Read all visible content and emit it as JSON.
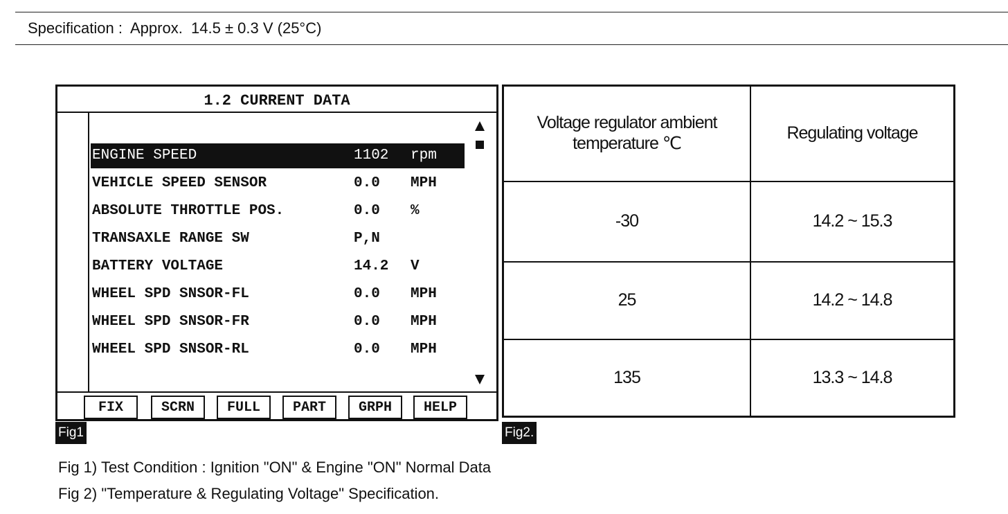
{
  "specification": {
    "label": "Specification :",
    "value": "Approx.  14.5 ± 0.3 V (25°C)"
  },
  "fig1": {
    "title": "1.2 CURRENT DATA",
    "rows": [
      [
        "ENGINE SPEED",
        "1102",
        "rpm"
      ],
      [
        "VEHICLE SPEED SENSOR",
        "0.0",
        "MPH"
      ],
      [
        "ABSOLUTE THROTTLE POS.",
        "0.0",
        "%"
      ],
      [
        "TRANSAXLE RANGE SW",
        "P,N",
        null
      ],
      [
        "BATTERY VOLTAGE",
        "14.2",
        "V"
      ],
      [
        "WHEEL SPD SNSOR-FL",
        "0.0",
        "MPH"
      ],
      [
        "WHEEL SPD SNSOR-FR",
        "0.0",
        "MPH"
      ],
      [
        "WHEEL SPD SNSOR-RL",
        "0.0",
        "MPH"
      ]
    ],
    "buttons": [
      "FIX",
      "SCRN",
      "FULL",
      "PART",
      "GRPH",
      "HELP"
    ],
    "caption": "Fig1"
  },
  "fig2": {
    "headers": [
      "Voltage regulator ambient temperature ℃",
      "Regulating voltage"
    ],
    "rows": [
      [
        "-30",
        "14.2 ~ 15.3"
      ],
      [
        "25",
        "14.2 ~ 14.8"
      ],
      [
        "135",
        "13.3 ~ 14.8"
      ]
    ],
    "caption": "Fig2."
  },
  "notes": [
    "Fig 1) Test Condition : Ignition \"ON\" & Engine \"ON\" Normal Data",
    "Fig 2) \"Temperature & Regulating Voltage\" Specification."
  ]
}
